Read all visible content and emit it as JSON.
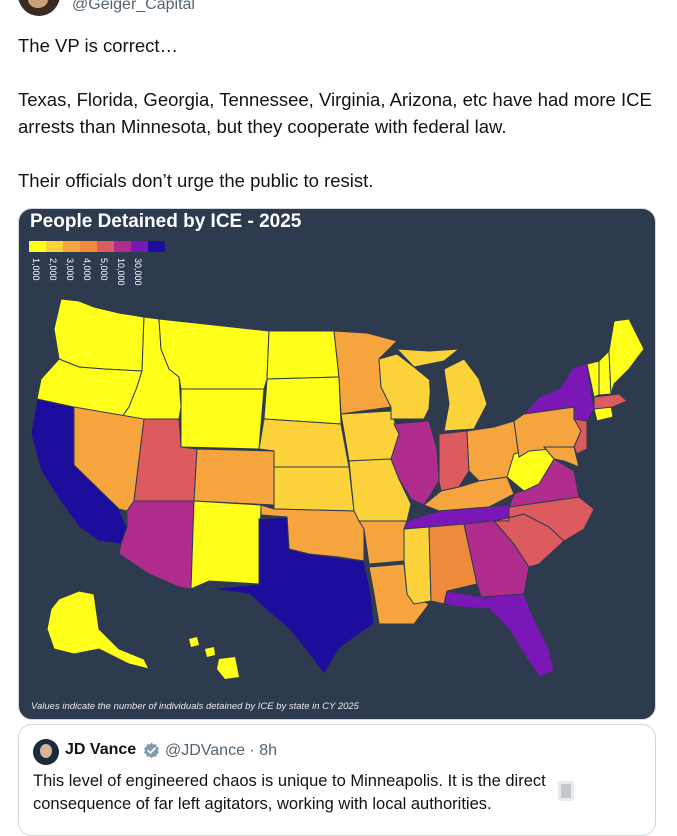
{
  "tweet": {
    "handle": "@Geiger_Capital",
    "text": "The VP is correct…\n\nTexas, Florida, Georgia, Tennessee, Virginia, Arizona, etc have had more ICE arrests than Minnesota, but they cooperate with federal law.\n\nTheir officials don’t urge the public to resist."
  },
  "map": {
    "title": "People Detained by ICE - 2025",
    "legend_labels": [
      "1,000",
      "2,000",
      "3,000",
      "4,000",
      "5,000",
      "10,000",
      "30,000"
    ],
    "legend_colors": [
      "#ffff1a",
      "#fbd23a",
      "#f6a43e",
      "#ef8a3a",
      "#dd5a5e",
      "#b02d8e",
      "#7b17b6",
      "#1c0d9c"
    ],
    "caption": "Values indicate the number of individuals detained by ICE by state in CY 2025"
  },
  "quote": {
    "name": "JD Vance",
    "handle": "@JDVance · 8h",
    "text": "This level of engineered chaos is unique to Minneapolis. It is the direct consequence of far left agitators, working with local authorities."
  }
}
